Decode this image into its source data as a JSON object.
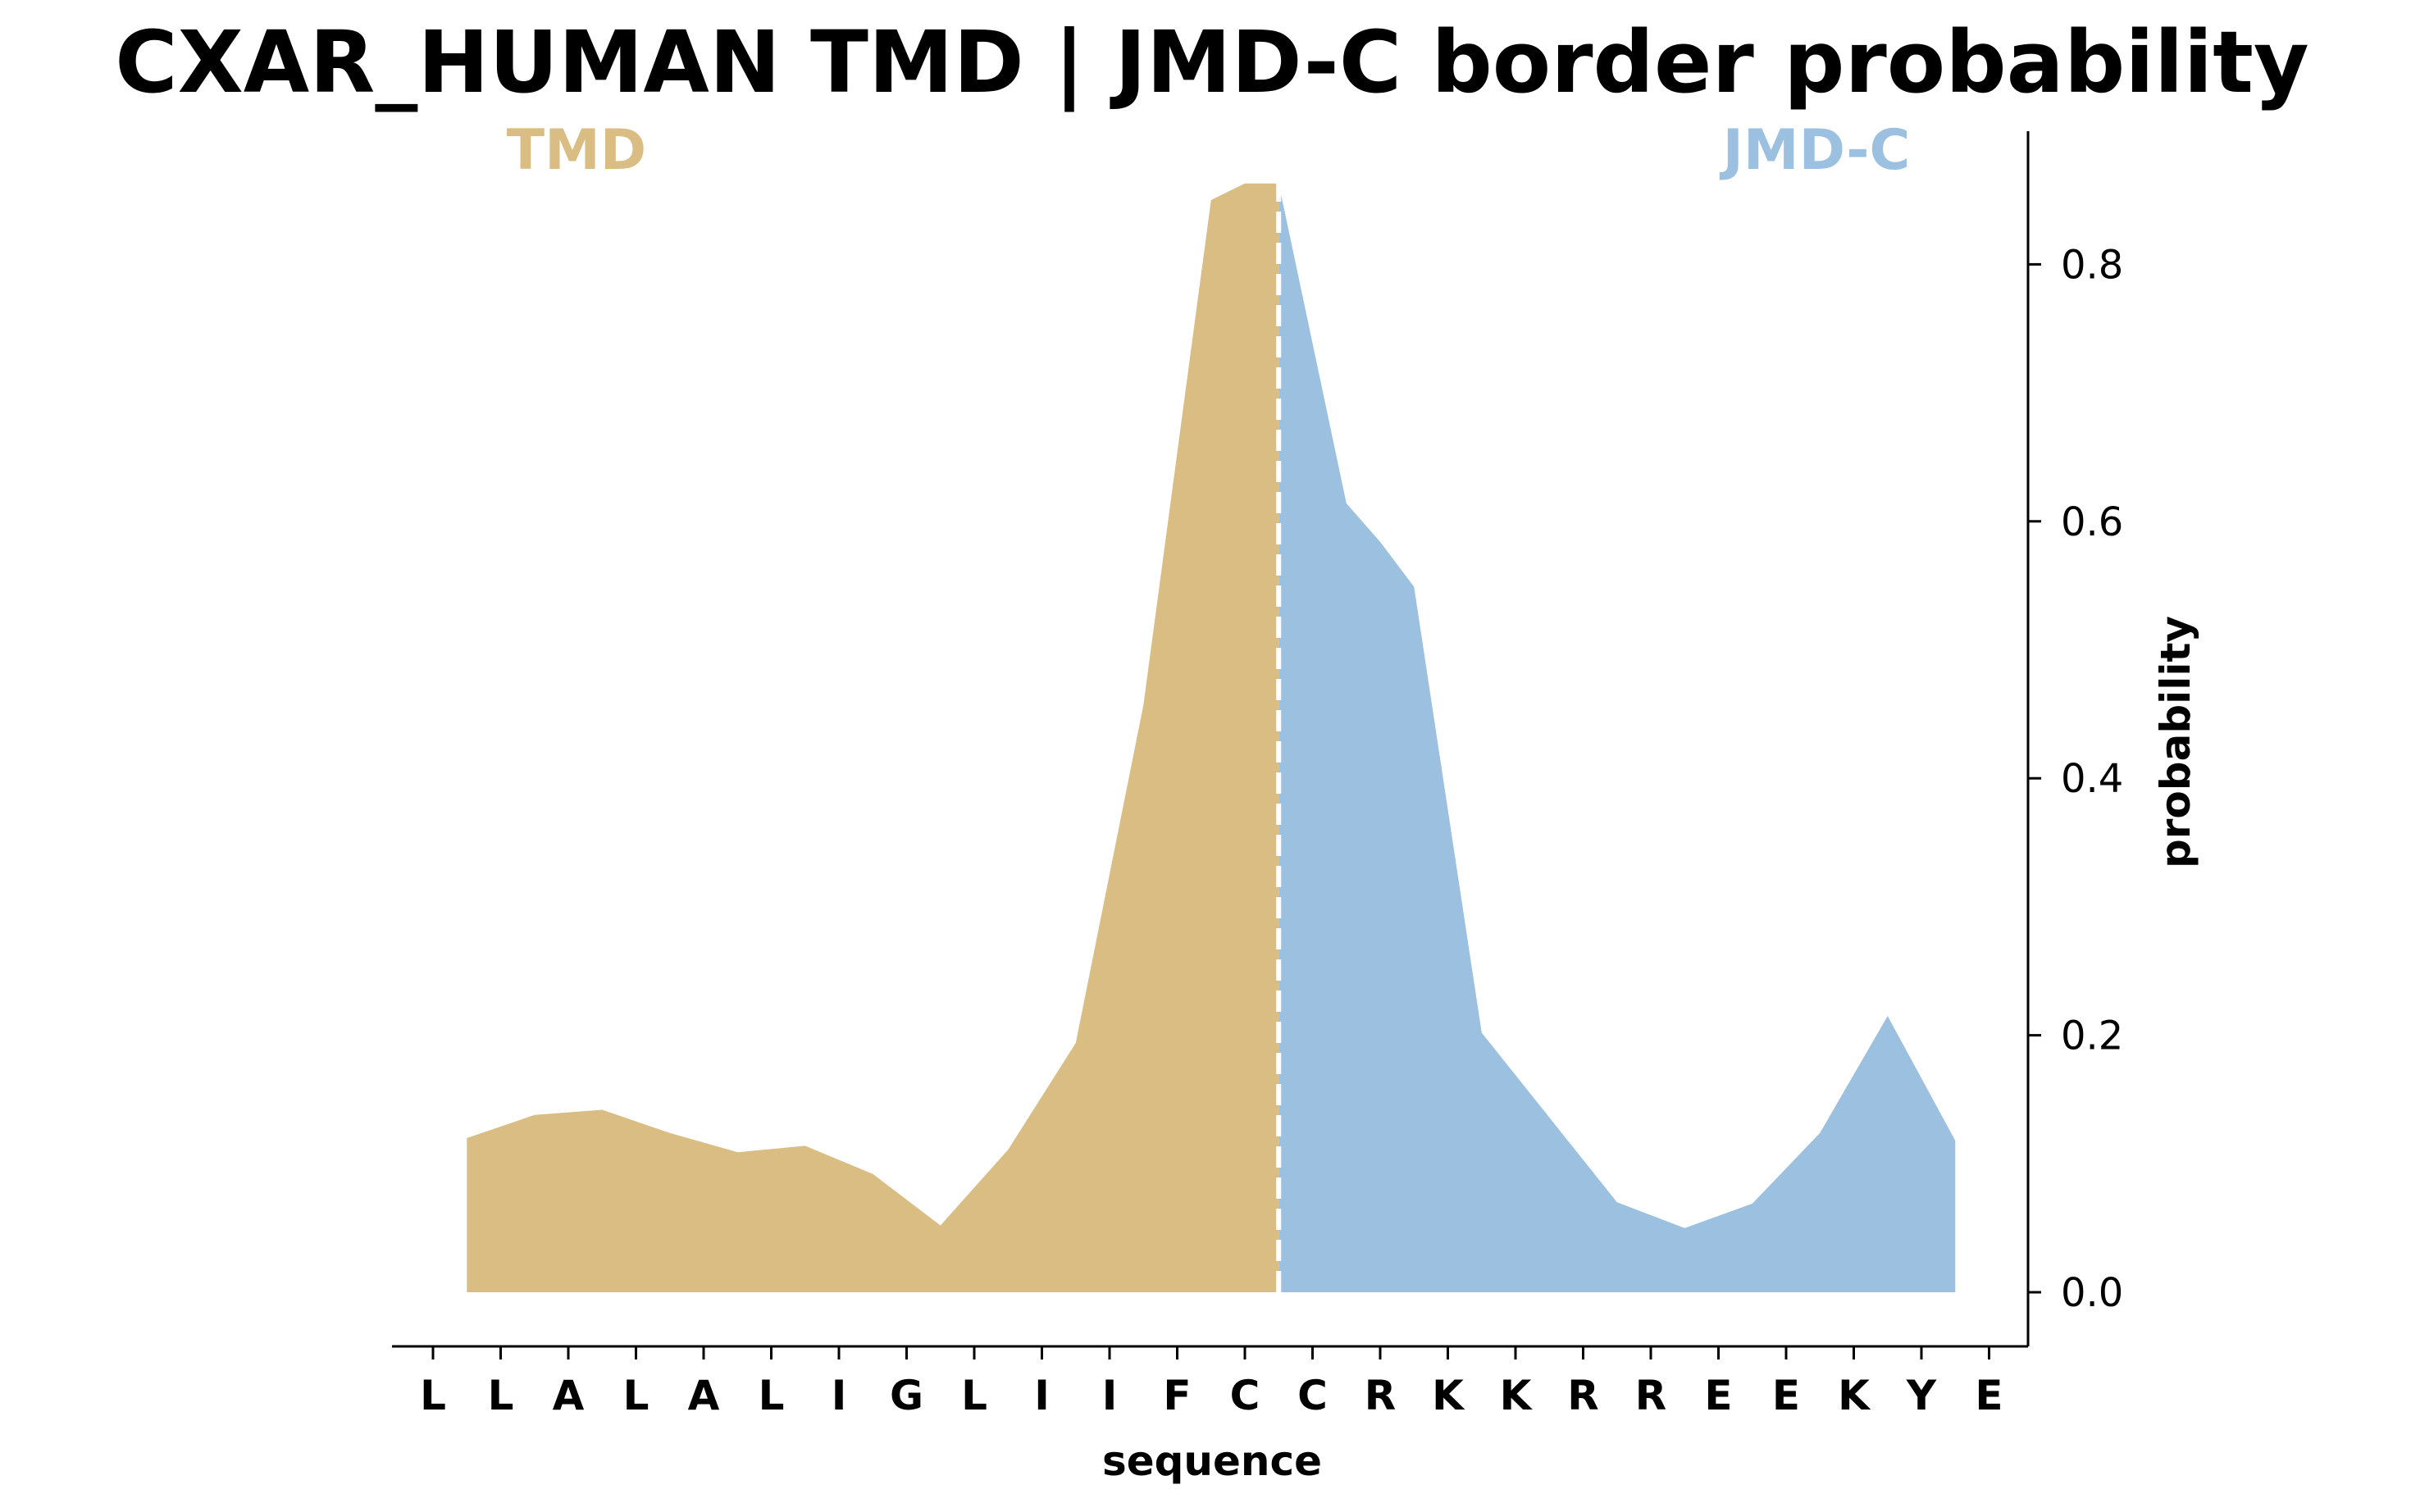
{
  "chart_data": {
    "type": "area",
    "title": "CXAR_HUMAN TMD | JMD-C border probability",
    "xlabel": "sequence",
    "ylabel": "probability",
    "ylim": [
      -0.04,
      0.905
    ],
    "yticks": [
      0.0,
      0.2,
      0.4,
      0.6,
      0.8
    ],
    "ytick_labels": [
      "0.0",
      "0.2",
      "0.4",
      "0.6",
      "0.8"
    ],
    "y_axis_side": "right",
    "grid": false,
    "sequence": [
      "L",
      "L",
      "A",
      "L",
      "A",
      "L",
      "I",
      "G",
      "L",
      "I",
      "I",
      "F",
      "C",
      "C",
      "R",
      "K",
      "K",
      "R",
      "R",
      "E",
      "E",
      "K",
      "Y",
      "E"
    ],
    "border_after_residue": 12,
    "regions": [
      {
        "name": "TMD",
        "color": "#d9bd82"
      },
      {
        "name": "JMD-C",
        "color": "#9bc0e0"
      }
    ],
    "border_line_color": "#ffffff",
    "series": [
      {
        "x": [
          0.5,
          1.5,
          2.5,
          3.5,
          4.5,
          5.5,
          6.5,
          7.5,
          8.5,
          9.5,
          10.5,
          11.5,
          12.0,
          12.5
        ],
        "values": [
          0.12,
          0.138,
          0.142,
          0.124,
          0.109,
          0.114,
          0.092,
          0.052,
          0.111,
          0.194,
          0.457,
          0.85,
          0.863,
          0.863
        ]
      },
      {
        "x": [
          12.5,
          13.5,
          14.0,
          14.5,
          15.5,
          16.5,
          17.5,
          18.5,
          19.5,
          20.5,
          21.5,
          22.5
        ],
        "values": [
          0.863,
          0.614,
          0.584,
          0.549,
          0.202,
          0.136,
          0.07,
          0.05,
          0.069,
          0.124,
          0.215,
          0.118
        ]
      }
    ]
  }
}
